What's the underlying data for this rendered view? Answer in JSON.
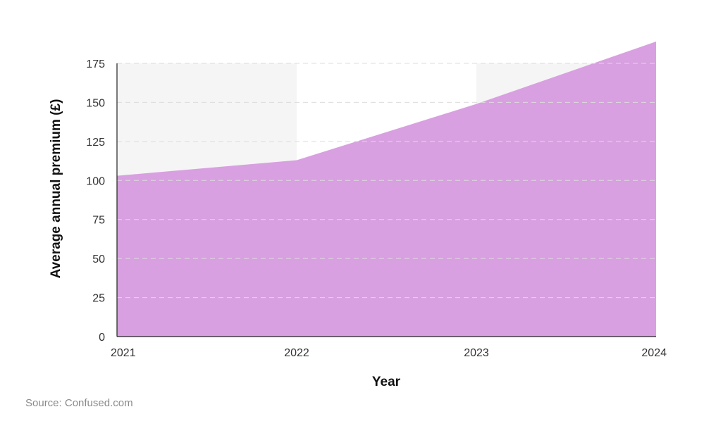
{
  "chart_data": {
    "type": "area",
    "title": "",
    "xlabel": "Year",
    "ylabel": "Average annual premium (£)",
    "x": [
      "2021",
      "2022",
      "2023",
      "2024"
    ],
    "series": [
      {
        "values": [
          103,
          113,
          149,
          189
        ]
      }
    ],
    "ylim": [
      0,
      175
    ],
    "yticks": [
      0,
      25,
      50,
      75,
      100,
      125,
      150,
      175
    ],
    "grid": true,
    "colors": {
      "area": "#d8a0e0",
      "band": "#f5f5f5",
      "grid": "#dcdcdc"
    }
  },
  "source": "Source: Confused.com"
}
